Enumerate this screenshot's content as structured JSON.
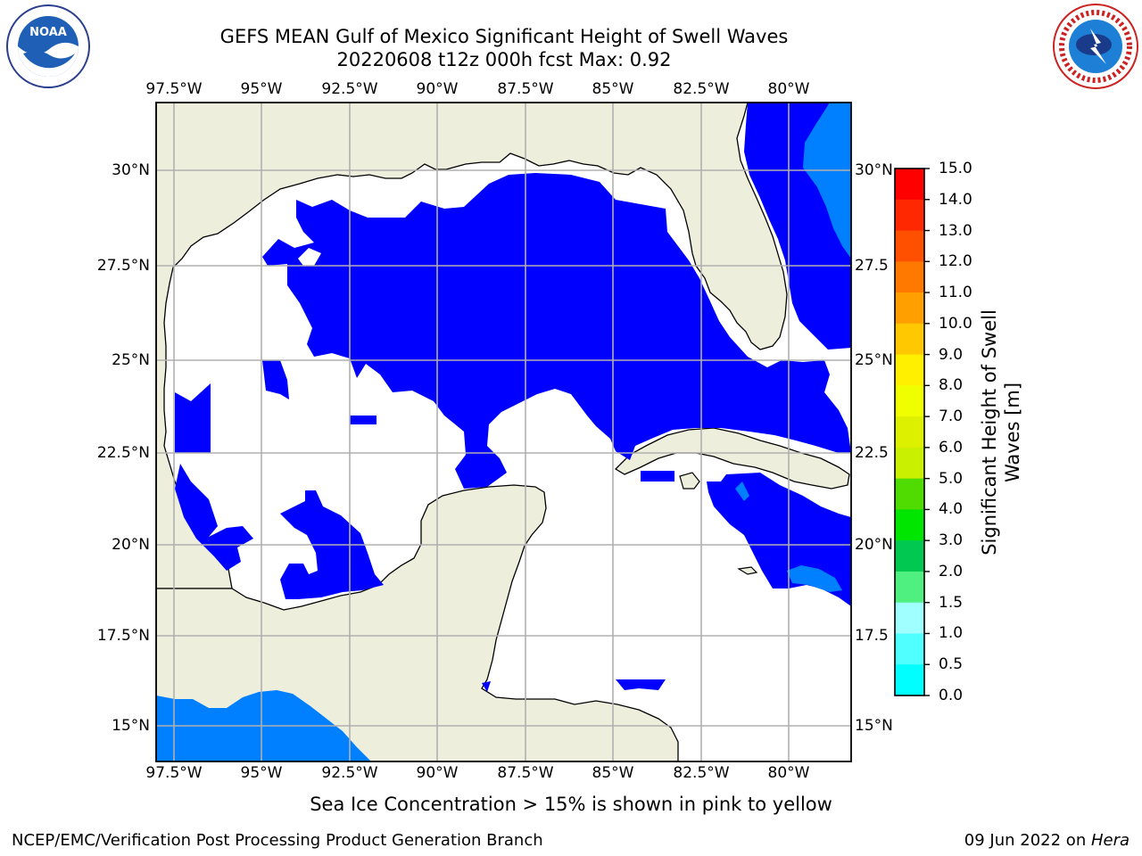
{
  "header": {
    "title_line1": "GEFS MEAN Gulf of Mexico Significant Height of Swell Waves",
    "title_line2": "20220608 t12z 000h fcst   Max: 0.92"
  },
  "logos": {
    "left": "noaa-logo",
    "right": "national-weather-service-logo"
  },
  "map": {
    "lon_ticks": [
      "97.5°W",
      "95°W",
      "92.5°W",
      "90°W",
      "87.5°W",
      "85°W",
      "82.5°W",
      "80°W"
    ],
    "lat_ticks_left": [
      "30°N",
      "27.5°N",
      "25°N",
      "22.5°N",
      "20°N",
      "17.5°N",
      "15°N"
    ],
    "lat_ticks_right": [
      "30°N",
      "27.5",
      "25°N",
      "22.5",
      "20°N",
      "17.5",
      "15°N"
    ],
    "colors": {
      "land": "#eeeedc",
      "ocean_no_data": "#ffffff",
      "swell_0_05": "#0000ff",
      "swell_05_10": "#0080ff",
      "gridline": "#b0b0b0",
      "coastline": "#000000"
    }
  },
  "colorbar": {
    "label": "Significant Height of Swell Waves [m]",
    "label_line1": "Significant Height of Swell",
    "label_line2": "Waves [m]",
    "ticks": [
      "15.0",
      "14.0",
      "13.0",
      "12.0",
      "11.0",
      "10.0",
      "9.0",
      "8.0",
      "7.0",
      "6.0",
      "5.0",
      "4.0",
      "3.0",
      "2.0",
      "1.5",
      "1.0",
      "0.5",
      "0.0"
    ],
    "colors": [
      "#ff0000",
      "#ff2800",
      "#ff5000",
      "#ff7800",
      "#ffa000",
      "#ffc800",
      "#fff000",
      "#f0ff00",
      "#dcf000",
      "#c8f000",
      "#50dc00",
      "#00e600",
      "#00c850",
      "#50f080",
      "#a0ffff",
      "#50ffff",
      "#00ffff",
      "#0080ff",
      "#0000ff"
    ]
  },
  "note": "Sea Ice Concentration > 15% is shown in pink to yellow",
  "footer": {
    "left": "NCEP/EMC/Verification Post Processing Product Generation Branch",
    "right_date": "09 Jun 2022 on ",
    "right_host": "Hera"
  }
}
